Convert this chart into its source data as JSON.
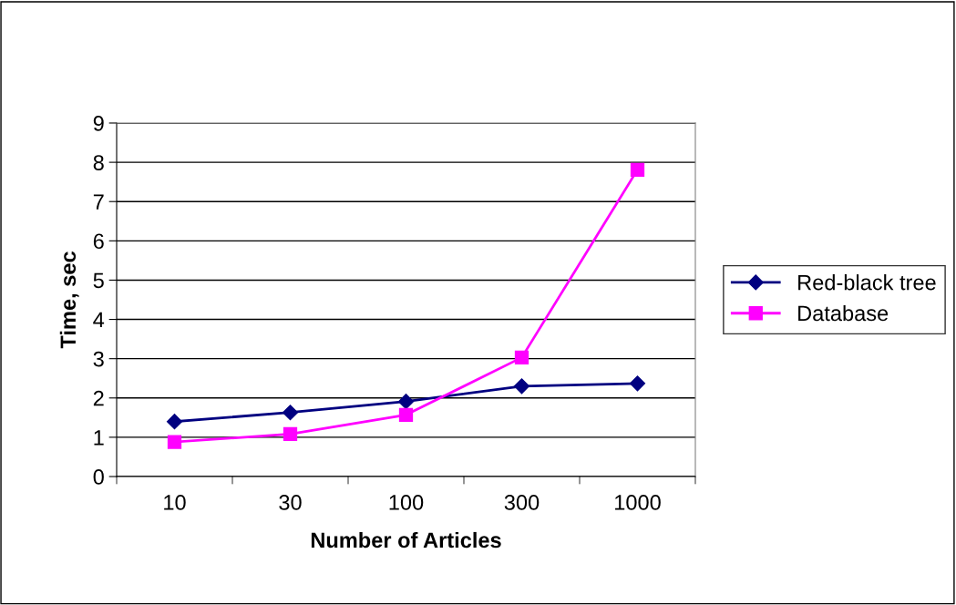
{
  "chart_data": {
    "type": "line",
    "xlabel": "Number of Articles",
    "ylabel": "Time, sec",
    "categories": [
      "10",
      "30",
      "100",
      "300",
      "1000"
    ],
    "series": [
      {
        "name": "Red-black tree",
        "color": "#000080",
        "marker": "diamond",
        "values": [
          1.4,
          1.63,
          1.91,
          2.3,
          2.37
        ]
      },
      {
        "name": "Database",
        "color": "#ff00ff",
        "marker": "square",
        "values": [
          0.88,
          1.08,
          1.57,
          3.03,
          7.81
        ]
      }
    ],
    "ylim": [
      0,
      9
    ],
    "yticks": [
      0,
      1,
      2,
      3,
      4,
      5,
      6,
      7,
      8,
      9
    ],
    "grid": "y",
    "legend": "right",
    "line_style": "solid"
  }
}
